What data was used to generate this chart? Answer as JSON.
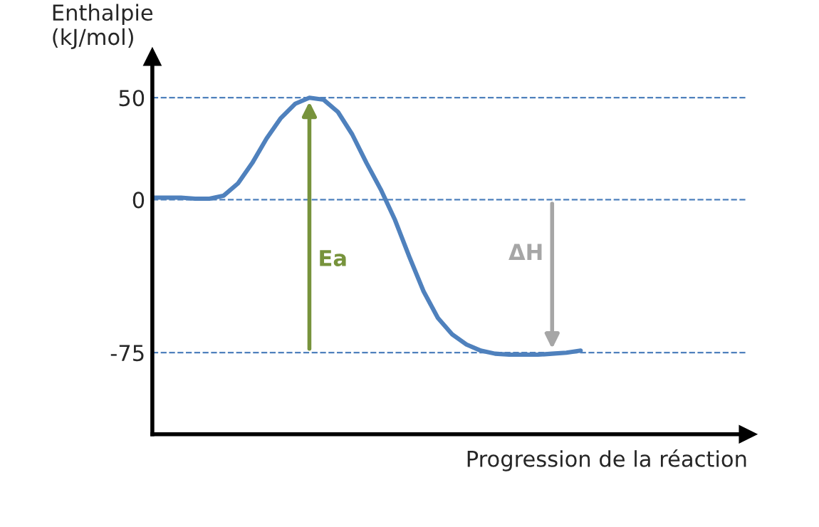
{
  "chart_data": {
    "type": "line",
    "ylabel": "Enthalpie\n(kJ/mol)",
    "xlabel": "Progression de la réaction",
    "categories": [
      null,
      null,
      null,
      null,
      null,
      null,
      null,
      null,
      null,
      null,
      null,
      null,
      null,
      null,
      null,
      null,
      null,
      null,
      null,
      null,
      null,
      null,
      null,
      null,
      null,
      null,
      null,
      null,
      null,
      null,
      null
    ],
    "series": [
      {
        "color": "#4f81bd",
        "values": [
          1,
          1,
          1,
          0.5,
          0.5,
          2,
          8,
          18,
          30,
          40,
          47,
          50,
          49,
          43,
          32,
          18,
          5,
          -10,
          -28,
          -45,
          -58,
          -66,
          -71,
          -74,
          -75.5,
          -76,
          -76,
          -76,
          -75.5,
          -75,
          -74
        ]
      }
    ],
    "ylim": [
      -115,
      70
    ],
    "yticks": [
      -75,
      0,
      50
    ],
    "grid": "y",
    "tick_labels": "y",
    "marker": "none",
    "line_style": "solid",
    "annotations": [
      "Ea",
      "ΔH"
    ]
  }
}
